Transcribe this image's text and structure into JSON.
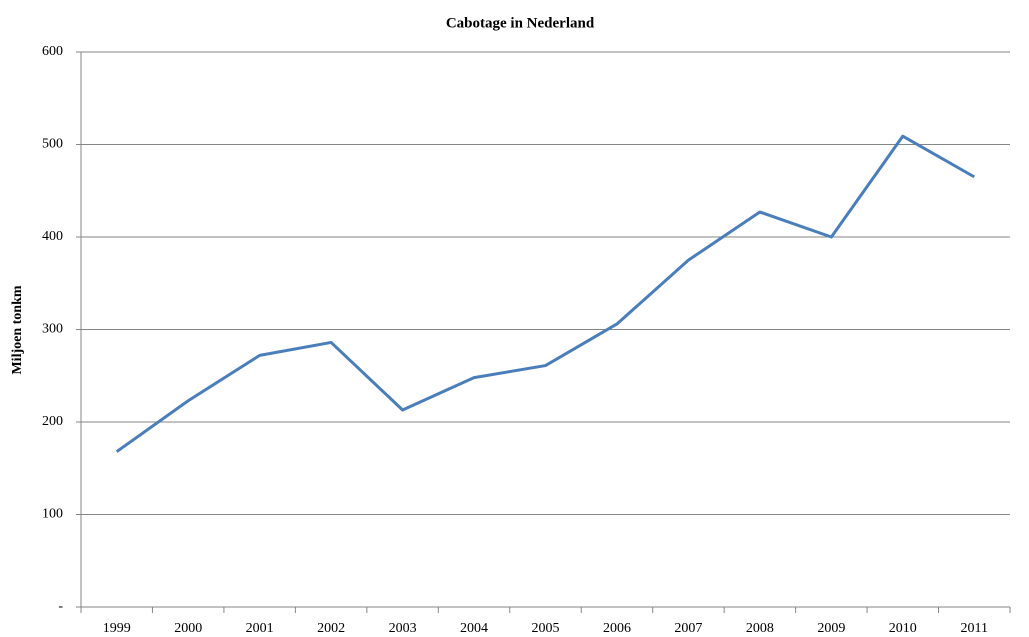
{
  "chart_data": {
    "type": "line",
    "title": "Cabotage in Nederland",
    "y_label": "Miljoen tonkm",
    "categories": [
      "1999",
      "2000",
      "2001",
      "2002",
      "2003",
      "2004",
      "2005",
      "2006",
      "2007",
      "2008",
      "2009",
      "2010",
      "2011"
    ],
    "values": [
      168,
      223,
      272,
      286,
      213,
      248,
      261,
      306,
      375,
      427,
      400,
      509,
      465
    ],
    "color": "#4a7ebb",
    "ylim": [
      0,
      600
    ],
    "yticks": [
      {
        "value": 0,
        "label": "-"
      },
      100,
      200,
      300,
      400,
      500,
      600
    ],
    "grid": true
  }
}
